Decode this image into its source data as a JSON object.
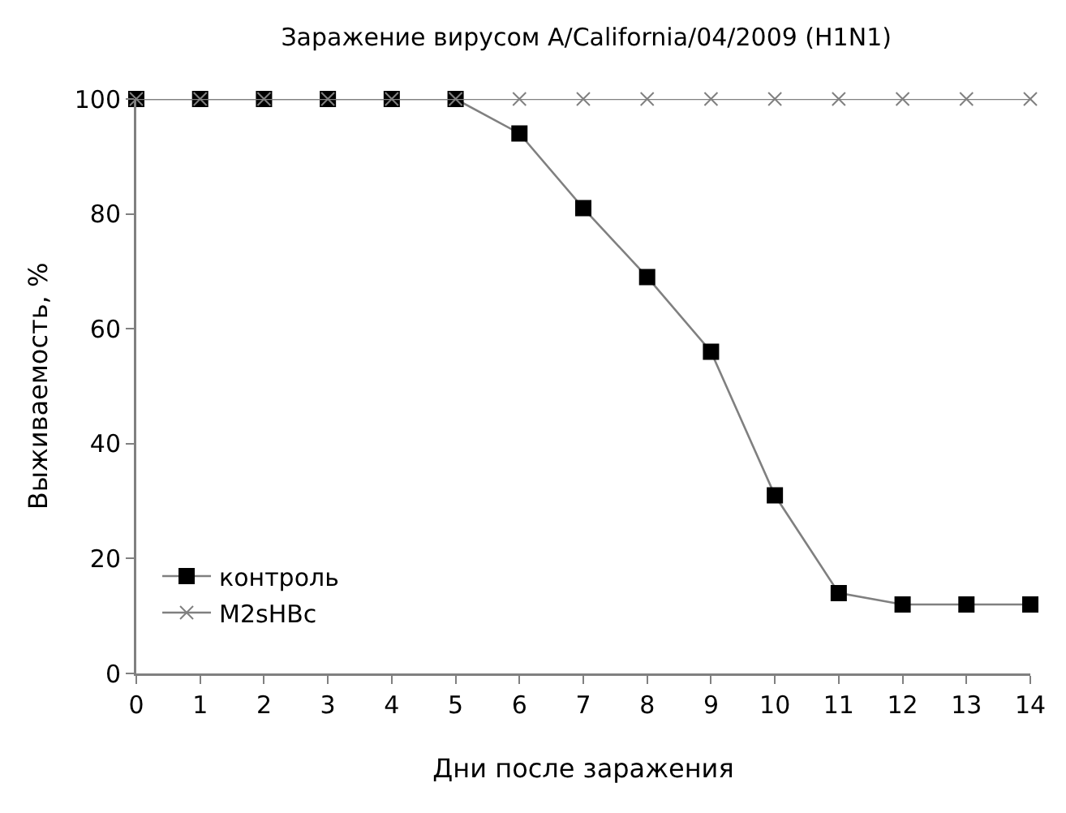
{
  "chart_data": {
    "type": "line",
    "title": "Заражение вирусом A/California/04/2009 (H1N1)",
    "xlabel": "Дни после заражения",
    "ylabel": "Выживаемость, %",
    "x": [
      0,
      1,
      2,
      3,
      4,
      5,
      6,
      7,
      8,
      9,
      10,
      11,
      12,
      13,
      14
    ],
    "series": [
      {
        "name": "контроль",
        "color": "#000000",
        "marker": "square",
        "values": [
          100,
          100,
          100,
          100,
          100,
          100,
          94,
          81,
          69,
          56,
          31,
          14,
          12,
          12,
          12
        ]
      },
      {
        "name": "M2sHBc",
        "color": "#808080",
        "marker": "cross",
        "values": [
          100,
          100,
          100,
          100,
          100,
          100,
          100,
          100,
          100,
          100,
          100,
          100,
          100,
          100,
          100
        ]
      }
    ],
    "xlim": [
      0,
      14
    ],
    "xticks": [
      0,
      1,
      2,
      3,
      4,
      5,
      6,
      7,
      8,
      9,
      10,
      11,
      12,
      13,
      14
    ],
    "ylim": [
      0,
      100
    ],
    "yticks": [
      0,
      20,
      40,
      60,
      80,
      100
    ],
    "grid": false,
    "legend": "bottom left",
    "line_style": "solid"
  }
}
